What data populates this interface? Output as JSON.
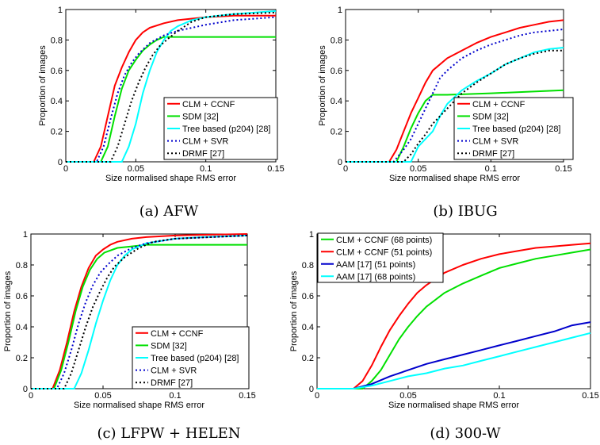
{
  "chart_data": [
    {
      "type": "line",
      "caption": "(a) AFW",
      "xlabel": "Size normalised shape RMS error",
      "ylabel": "Proportion of images",
      "xlim": [
        0,
        0.15
      ],
      "ylim": [
        0,
        1
      ],
      "xticks": [
        0,
        0.05,
        0.1,
        0.15
      ],
      "xtick_labels": [
        "0",
        "0.05",
        "0.1",
        "0.15"
      ],
      "yticks": [
        0,
        0.2,
        0.4,
        0.6,
        0.8,
        1
      ],
      "ytick_labels": [
        "0",
        "0.2",
        "0.4",
        "0.6",
        "0.8",
        "1"
      ],
      "legend_position": "bottom-right",
      "series": [
        {
          "name": "CLM + CCNF",
          "color": "#ff0000",
          "dash": "solid",
          "x": [
            0.02,
            0.025,
            0.03,
            0.035,
            0.04,
            0.045,
            0.05,
            0.055,
            0.06,
            0.07,
            0.08,
            0.1,
            0.12,
            0.15
          ],
          "y": [
            0,
            0.1,
            0.3,
            0.5,
            0.62,
            0.72,
            0.8,
            0.85,
            0.88,
            0.91,
            0.93,
            0.95,
            0.96,
            0.96
          ]
        },
        {
          "name": "SDM [32]",
          "color": "#00e000",
          "dash": "solid",
          "x": [
            0.025,
            0.03,
            0.035,
            0.04,
            0.045,
            0.05,
            0.055,
            0.06,
            0.065,
            0.07,
            0.08,
            0.1,
            0.15
          ],
          "y": [
            0,
            0.1,
            0.3,
            0.48,
            0.6,
            0.67,
            0.73,
            0.77,
            0.8,
            0.82,
            0.82,
            0.82,
            0.82
          ]
        },
        {
          "name": "Tree based (p204) [28]",
          "color": "#00ffff",
          "dash": "solid",
          "x": [
            0.04,
            0.045,
            0.05,
            0.055,
            0.06,
            0.065,
            0.07,
            0.075,
            0.08,
            0.09,
            0.1,
            0.12,
            0.15
          ],
          "y": [
            0,
            0.1,
            0.25,
            0.45,
            0.6,
            0.72,
            0.8,
            0.86,
            0.89,
            0.93,
            0.95,
            0.97,
            0.99
          ]
        },
        {
          "name": "CLM + SVR",
          "color": "#0000cc",
          "dash": "dot",
          "x": [
            0.022,
            0.027,
            0.032,
            0.037,
            0.042,
            0.047,
            0.052,
            0.06,
            0.07,
            0.08,
            0.1,
            0.12,
            0.15
          ],
          "y": [
            0,
            0.1,
            0.28,
            0.45,
            0.57,
            0.65,
            0.71,
            0.78,
            0.83,
            0.86,
            0.9,
            0.93,
            0.95
          ]
        },
        {
          "name": "DRMF [27]",
          "color": "#000000",
          "dash": "dot",
          "x": [
            0.032,
            0.037,
            0.042,
            0.047,
            0.052,
            0.057,
            0.062,
            0.067,
            0.072,
            0.08,
            0.09,
            0.1,
            0.12,
            0.15
          ],
          "y": [
            0,
            0.1,
            0.25,
            0.4,
            0.52,
            0.62,
            0.7,
            0.76,
            0.8,
            0.86,
            0.92,
            0.95,
            0.97,
            0.98
          ]
        }
      ]
    },
    {
      "type": "line",
      "caption": "(b) IBUG",
      "xlabel": "Size normalised shape RMS error",
      "ylabel": "Proportion of images",
      "xlim": [
        0,
        0.15
      ],
      "ylim": [
        0,
        1
      ],
      "xticks": [
        0,
        0.05,
        0.1,
        0.15
      ],
      "xtick_labels": [
        "0",
        "0.05",
        "0.1",
        "0.15"
      ],
      "yticks": [
        0,
        0.2,
        0.4,
        0.6,
        0.8,
        1
      ],
      "ytick_labels": [
        "0",
        "0.2",
        "0.4",
        "0.6",
        "0.8",
        "1"
      ],
      "legend_position": "center-left",
      "series": [
        {
          "name": "CLM + CCNF",
          "color": "#ff0000",
          "dash": "solid",
          "x": [
            0.03,
            0.035,
            0.04,
            0.045,
            0.05,
            0.055,
            0.06,
            0.07,
            0.08,
            0.09,
            0.1,
            0.11,
            0.12,
            0.13,
            0.14,
            0.15
          ],
          "y": [
            0,
            0.08,
            0.2,
            0.32,
            0.42,
            0.52,
            0.6,
            0.68,
            0.73,
            0.78,
            0.82,
            0.85,
            0.88,
            0.9,
            0.92,
            0.93
          ]
        },
        {
          "name": "SDM [32]",
          "color": "#00e000",
          "dash": "solid",
          "x": [
            0.035,
            0.04,
            0.045,
            0.05,
            0.055,
            0.06,
            0.065,
            0.07,
            0.1,
            0.15
          ],
          "y": [
            0,
            0.1,
            0.22,
            0.32,
            0.4,
            0.44,
            0.44,
            0.44,
            0.45,
            0.47
          ]
        },
        {
          "name": "Tree based (p204) [28]",
          "color": "#00ffff",
          "dash": "solid",
          "x": [
            0.045,
            0.05,
            0.055,
            0.06,
            0.065,
            0.07,
            0.08,
            0.09,
            0.1,
            0.11,
            0.12,
            0.13,
            0.14,
            0.15
          ],
          "y": [
            0,
            0.1,
            0.15,
            0.2,
            0.3,
            0.38,
            0.47,
            0.53,
            0.58,
            0.64,
            0.68,
            0.72,
            0.74,
            0.75
          ]
        },
        {
          "name": "CLM + SVR",
          "color": "#0000cc",
          "dash": "dot",
          "x": [
            0.033,
            0.04,
            0.045,
            0.05,
            0.055,
            0.06,
            0.065,
            0.07,
            0.08,
            0.09,
            0.1,
            0.11,
            0.12,
            0.13,
            0.14,
            0.15
          ],
          "y": [
            0,
            0.08,
            0.15,
            0.25,
            0.35,
            0.45,
            0.55,
            0.6,
            0.68,
            0.73,
            0.77,
            0.8,
            0.83,
            0.85,
            0.86,
            0.87
          ]
        },
        {
          "name": "DRMF [27]",
          "color": "#000000",
          "dash": "dot",
          "x": [
            0.04,
            0.045,
            0.05,
            0.055,
            0.06,
            0.07,
            0.08,
            0.09,
            0.1,
            0.11,
            0.12,
            0.13,
            0.14,
            0.15
          ],
          "y": [
            0,
            0.05,
            0.12,
            0.18,
            0.25,
            0.35,
            0.45,
            0.52,
            0.58,
            0.64,
            0.68,
            0.71,
            0.73,
            0.73
          ]
        }
      ]
    },
    {
      "type": "line",
      "caption": "(c) LFPW + HELEN",
      "xlabel": "Size normalised shape RMS error",
      "ylabel": "Proportion of images",
      "xlim": [
        0,
        0.15
      ],
      "ylim": [
        0,
        1
      ],
      "xticks": [
        0,
        0.05,
        0.1,
        0.15
      ],
      "xtick_labels": [
        "0",
        "0.05",
        "0.1",
        "0.15"
      ],
      "yticks": [
        0,
        0.2,
        0.4,
        0.6,
        0.8,
        1
      ],
      "ytick_labels": [
        "0",
        "0.2",
        "0.4",
        "0.6",
        "0.8",
        "1"
      ],
      "legend_position": "bottom-right",
      "series": [
        {
          "name": "CLM + CCNF",
          "color": "#ff0000",
          "dash": "solid",
          "x": [
            0.015,
            0.02,
            0.025,
            0.03,
            0.035,
            0.04,
            0.045,
            0.05,
            0.055,
            0.06,
            0.07,
            0.08,
            0.1,
            0.12,
            0.15
          ],
          "y": [
            0,
            0.12,
            0.3,
            0.5,
            0.66,
            0.78,
            0.86,
            0.9,
            0.93,
            0.95,
            0.97,
            0.98,
            0.99,
            0.995,
            1.0
          ]
        },
        {
          "name": "SDM [32]",
          "color": "#00e000",
          "dash": "solid",
          "x": [
            0.016,
            0.021,
            0.026,
            0.031,
            0.036,
            0.041,
            0.046,
            0.051,
            0.06,
            0.07,
            0.08,
            0.1,
            0.15
          ],
          "y": [
            0,
            0.12,
            0.3,
            0.5,
            0.66,
            0.77,
            0.84,
            0.88,
            0.91,
            0.92,
            0.93,
            0.93,
            0.93
          ]
        },
        {
          "name": "Tree based (p204) [28]",
          "color": "#00ffff",
          "dash": "solid",
          "x": [
            0.03,
            0.035,
            0.04,
            0.045,
            0.05,
            0.055,
            0.06,
            0.065,
            0.07,
            0.08,
            0.1,
            0.12,
            0.15
          ],
          "y": [
            0,
            0.1,
            0.25,
            0.42,
            0.57,
            0.7,
            0.8,
            0.86,
            0.9,
            0.94,
            0.97,
            0.98,
            0.99
          ]
        },
        {
          "name": "CLM + SVR",
          "color": "#0000cc",
          "dash": "dot",
          "x": [
            0.018,
            0.023,
            0.028,
            0.033,
            0.038,
            0.043,
            0.048,
            0.053,
            0.06,
            0.07,
            0.08,
            0.1,
            0.15
          ],
          "y": [
            0,
            0.1,
            0.25,
            0.42,
            0.56,
            0.67,
            0.75,
            0.8,
            0.86,
            0.91,
            0.94,
            0.97,
            0.99
          ]
        },
        {
          "name": "DRMF [27]",
          "color": "#000000",
          "dash": "dot",
          "x": [
            0.023,
            0.028,
            0.033,
            0.038,
            0.043,
            0.048,
            0.053,
            0.058,
            0.065,
            0.075,
            0.085,
            0.1,
            0.15
          ],
          "y": [
            0,
            0.1,
            0.25,
            0.4,
            0.53,
            0.63,
            0.72,
            0.79,
            0.85,
            0.91,
            0.95,
            0.97,
            0.99
          ]
        }
      ]
    },
    {
      "type": "line",
      "caption": "(d) 300-W",
      "xlabel": "Size normalised shape RMS error",
      "ylabel": "Proportion of images",
      "xlim": [
        0,
        0.15
      ],
      "ylim": [
        0,
        1
      ],
      "xticks": [
        0,
        0.05,
        0.1,
        0.15
      ],
      "xtick_labels": [
        "0",
        "0.05",
        "0.1",
        "0.15"
      ],
      "yticks": [
        0,
        0.2,
        0.4,
        0.6,
        0.8,
        1
      ],
      "ytick_labels": [
        "0",
        "0.2",
        "0.4",
        "0.6",
        "0.8",
        "1"
      ],
      "legend_position": "top-left",
      "series": [
        {
          "name": "CLM + CCNF (68 points)",
          "color": "#00e000",
          "dash": "solid",
          "x": [
            0.025,
            0.03,
            0.035,
            0.04,
            0.045,
            0.05,
            0.055,
            0.06,
            0.07,
            0.08,
            0.09,
            0.1,
            0.11,
            0.12,
            0.13,
            0.14,
            0.15
          ],
          "y": [
            0,
            0.05,
            0.12,
            0.22,
            0.32,
            0.4,
            0.47,
            0.53,
            0.62,
            0.68,
            0.73,
            0.78,
            0.81,
            0.84,
            0.86,
            0.88,
            0.9
          ]
        },
        {
          "name": "CLM + CCNF (51 points)",
          "color": "#ff0000",
          "dash": "solid",
          "x": [
            0.02,
            0.025,
            0.03,
            0.035,
            0.04,
            0.045,
            0.05,
            0.055,
            0.06,
            0.07,
            0.08,
            0.09,
            0.1,
            0.11,
            0.12,
            0.13,
            0.14,
            0.15
          ],
          "y": [
            0,
            0.05,
            0.15,
            0.27,
            0.38,
            0.47,
            0.55,
            0.62,
            0.67,
            0.75,
            0.8,
            0.84,
            0.87,
            0.89,
            0.91,
            0.92,
            0.93,
            0.94
          ]
        },
        {
          "name": "AAM [17] (51 points)",
          "color": "#0000cc",
          "dash": "solid",
          "x": [
            0.02,
            0.03,
            0.04,
            0.05,
            0.06,
            0.07,
            0.08,
            0.09,
            0.1,
            0.11,
            0.12,
            0.13,
            0.14,
            0.15
          ],
          "y": [
            0,
            0.03,
            0.08,
            0.12,
            0.16,
            0.19,
            0.22,
            0.25,
            0.28,
            0.31,
            0.34,
            0.37,
            0.41,
            0.43
          ]
        },
        {
          "name": "AAM [17] (68 points)",
          "color": "#00ffff",
          "dash": "solid",
          "x": [
            0.02,
            0.03,
            0.04,
            0.05,
            0.06,
            0.07,
            0.08,
            0.09,
            0.1,
            0.11,
            0.12,
            0.13,
            0.14,
            0.15
          ],
          "y": [
            0,
            0.02,
            0.05,
            0.08,
            0.1,
            0.13,
            0.15,
            0.18,
            0.21,
            0.24,
            0.27,
            0.3,
            0.33,
            0.36
          ]
        }
      ]
    }
  ]
}
